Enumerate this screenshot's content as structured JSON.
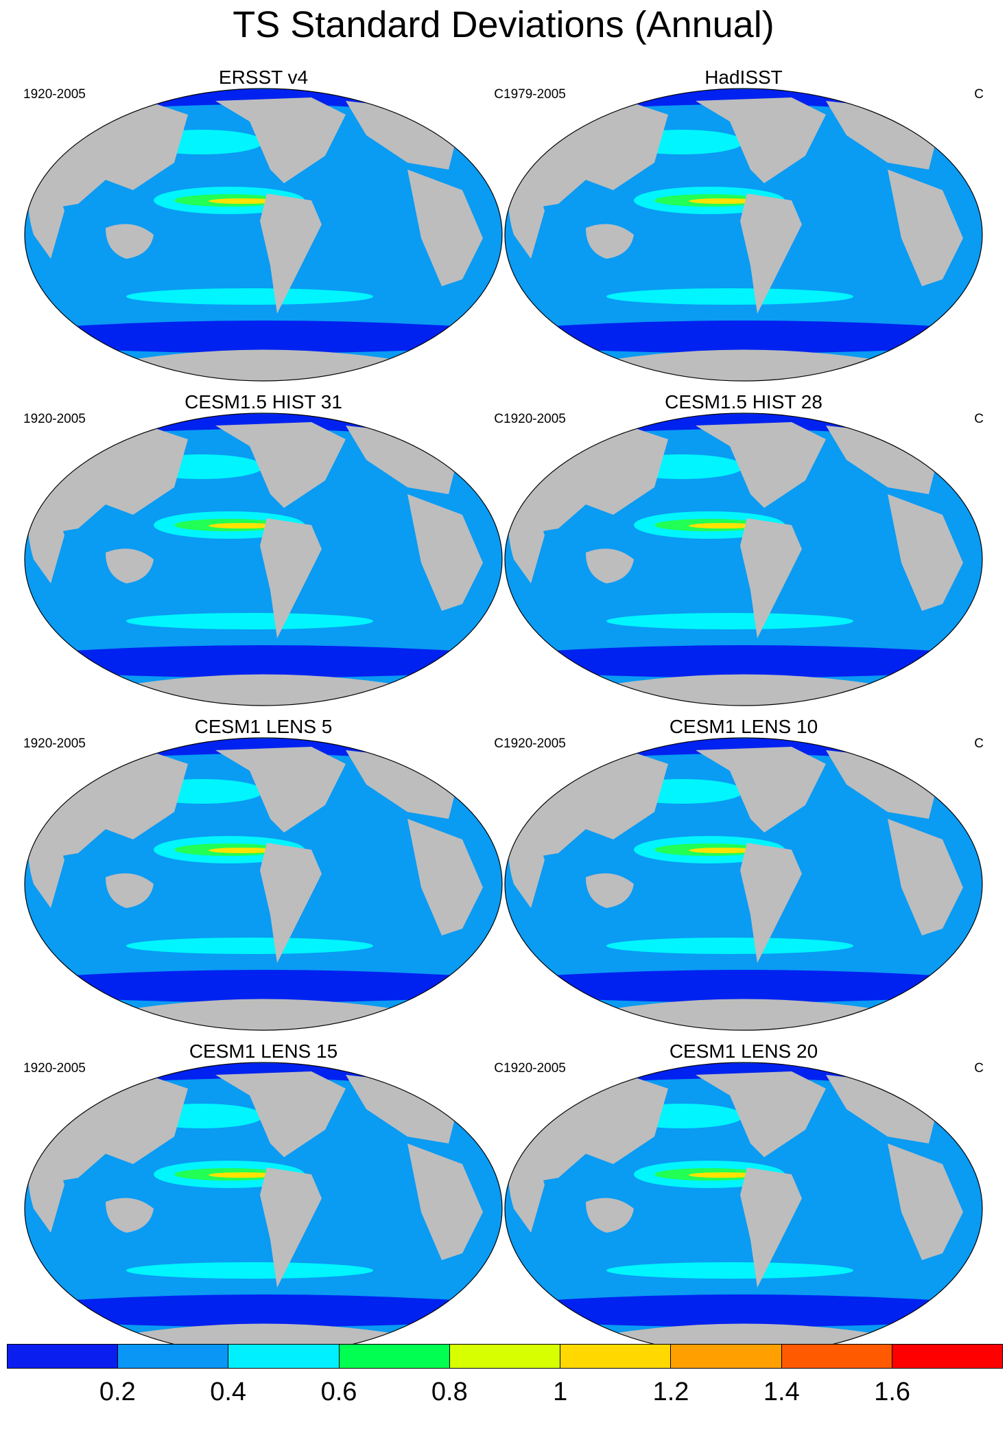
{
  "title": "TS Standard Deviations (Annual)",
  "colors": {
    "land": "#bdbdbd",
    "ocean_base": "#0a9bf3",
    "ice": "#0022f0",
    "anomaly_low": "#00f5ff",
    "anomaly_mid": "#22ff55",
    "anomaly_high": "#ffe200"
  },
  "panels": [
    {
      "title": "ERSST v4",
      "years": "1920-2005",
      "units": "C"
    },
    {
      "title": "HadISST",
      "years": "1979-2005",
      "units": "C"
    },
    {
      "title": "CESM1.5 HIST 31",
      "years": "1920-2005",
      "units": "C"
    },
    {
      "title": "CESM1.5 HIST 28",
      "years": "1920-2005",
      "units": "C"
    },
    {
      "title": "CESM1 LENS 5",
      "years": "1920-2005",
      "units": "C"
    },
    {
      "title": "CESM1 LENS 10",
      "years": "1920-2005",
      "units": "C"
    },
    {
      "title": "CESM1 LENS 15",
      "years": "1920-2005",
      "units": "C"
    },
    {
      "title": "CESM1 LENS 20",
      "years": "1920-2005",
      "units": "C"
    }
  ],
  "colorbar": {
    "labels": [
      "0.2",
      "0.4",
      "0.6",
      "0.8",
      "1",
      "1.2",
      "1.4",
      "1.6"
    ],
    "colors": [
      "#0a1ef0",
      "#0a96f4",
      "#00f0ff",
      "#00ff50",
      "#d8ff00",
      "#ffd800",
      "#ffa000",
      "#ff5a00",
      "#ff0000"
    ]
  }
}
